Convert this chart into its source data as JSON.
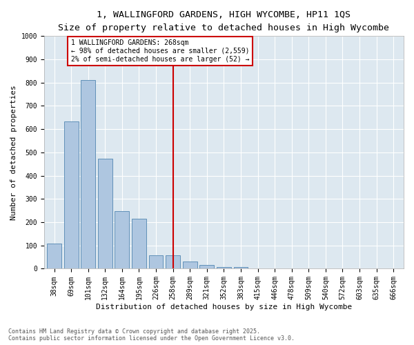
{
  "title_line1": "1, WALLINGFORD GARDENS, HIGH WYCOMBE, HP11 1QS",
  "title_line2": "Size of property relative to detached houses in High Wycombe",
  "xlabel": "Distribution of detached houses by size in High Wycombe",
  "ylabel": "Number of detached properties",
  "categories": [
    "38sqm",
    "69sqm",
    "101sqm",
    "132sqm",
    "164sqm",
    "195sqm",
    "226sqm",
    "258sqm",
    "289sqm",
    "321sqm",
    "352sqm",
    "383sqm",
    "415sqm",
    "446sqm",
    "478sqm",
    "509sqm",
    "540sqm",
    "572sqm",
    "603sqm",
    "635sqm",
    "666sqm"
  ],
  "values": [
    107,
    634,
    810,
    473,
    247,
    215,
    57,
    57,
    30,
    17,
    8,
    8,
    0,
    0,
    0,
    0,
    0,
    0,
    0,
    0,
    0
  ],
  "bar_color": "#aec6e0",
  "bar_edge_color": "#6090b8",
  "vline_x_index": 7,
  "vline_color": "#cc0000",
  "annotation_line1": "1 WALLINGFORD GARDENS: 268sqm",
  "annotation_line2": "← 98% of detached houses are smaller (2,559)",
  "annotation_line3": "2% of semi-detached houses are larger (52) →",
  "annotation_box_edge_color": "#cc0000",
  "ylim_max": 1000,
  "yticks": [
    0,
    100,
    200,
    300,
    400,
    500,
    600,
    700,
    800,
    900,
    1000
  ],
  "background_color": "#dde8f0",
  "grid_color": "#ffffff",
  "footer_line1": "Contains HM Land Registry data © Crown copyright and database right 2025.",
  "footer_line2": "Contains public sector information licensed under the Open Government Licence v3.0.",
  "title_fontsize": 9.5,
  "subtitle_fontsize": 8.5,
  "axis_label_fontsize": 8,
  "tick_fontsize": 7,
  "annotation_fontsize": 7,
  "footer_fontsize": 6
}
